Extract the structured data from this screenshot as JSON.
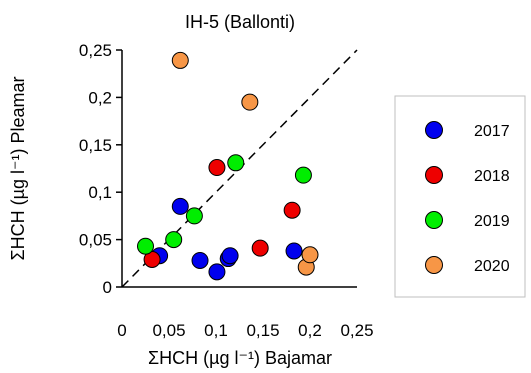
{
  "chart_data": {
    "type": "scatter",
    "title": "IH-5 (Ballonti)",
    "xlabel": "ΣHCH (µg l⁻¹) Bajamar",
    "ylabel": "ΣHCH (µg l⁻¹) Pleamar",
    "xlim": [
      0,
      0.25
    ],
    "ylim": [
      0,
      0.25
    ],
    "x_ticks": [
      0,
      0.05,
      0.1,
      0.15,
      0.2,
      0.25
    ],
    "y_ticks": [
      0,
      0.05,
      0.1,
      0.15,
      0.2,
      0.25
    ],
    "x_tick_labels": [
      "0",
      "0,05",
      "0,1",
      "0,15",
      "0,2",
      "0,25"
    ],
    "y_tick_labels": [
      "0",
      "0,05",
      "0,1",
      "0,15",
      "0,2",
      "0,25"
    ],
    "reference_line": "1:1 dashed diagonal",
    "grid": false,
    "legend_position": "right",
    "series": [
      {
        "name": "2017",
        "color": "#0000ee",
        "points": [
          {
            "x": 0.04,
            "y": 0.033
          },
          {
            "x": 0.062,
            "y": 0.085
          },
          {
            "x": 0.083,
            "y": 0.028
          },
          {
            "x": 0.101,
            "y": 0.016
          },
          {
            "x": 0.113,
            "y": 0.03
          },
          {
            "x": 0.115,
            "y": 0.033
          },
          {
            "x": 0.183,
            "y": 0.038
          }
        ]
      },
      {
        "name": "2018",
        "color": "#ee0000",
        "points": [
          {
            "x": 0.032,
            "y": 0.029
          },
          {
            "x": 0.101,
            "y": 0.126
          },
          {
            "x": 0.147,
            "y": 0.041
          },
          {
            "x": 0.181,
            "y": 0.081
          }
        ]
      },
      {
        "name": "2019",
        "color": "#00ee00",
        "points": [
          {
            "x": 0.025,
            "y": 0.043
          },
          {
            "x": 0.055,
            "y": 0.05
          },
          {
            "x": 0.077,
            "y": 0.075
          },
          {
            "x": 0.121,
            "y": 0.131
          },
          {
            "x": 0.193,
            "y": 0.118
          }
        ]
      },
      {
        "name": "2020",
        "color": "#f79646",
        "points": [
          {
            "x": 0.062,
            "y": 0.239
          },
          {
            "x": 0.136,
            "y": 0.195
          },
          {
            "x": 0.196,
            "y": 0.021
          },
          {
            "x": 0.2,
            "y": 0.034
          }
        ]
      }
    ]
  }
}
